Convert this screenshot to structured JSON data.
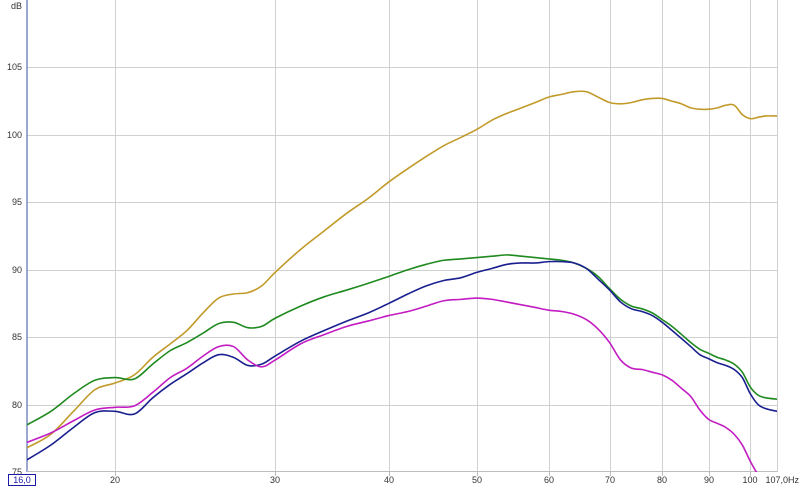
{
  "chart_data": {
    "type": "line",
    "title": "",
    "xlabel": "Hz",
    "ylabel": "dB",
    "x_scale": "log",
    "xlim": [
      16.0,
      107.0
    ],
    "ylim": [
      75,
      110
    ],
    "x_ticks": [
      20,
      30,
      40,
      50,
      60,
      70,
      80,
      90,
      100
    ],
    "x_tick_labels": [
      "20",
      "30",
      "40",
      "50",
      "60",
      "70",
      "80",
      "90",
      "100"
    ],
    "x_start_label": "16,0",
    "x_end_label": "107,0Hz",
    "y_ticks": [
      75,
      80,
      85,
      90,
      95,
      100,
      105
    ],
    "y_tick_labels": [
      "75",
      "80",
      "85",
      "90",
      "95",
      "100",
      "105"
    ],
    "y_unit_label": "dB",
    "grid": true,
    "series": [
      {
        "color": "#c29a2a",
        "x": [
          16,
          17,
          18,
          19,
          20,
          21,
          22,
          23,
          24,
          25,
          26,
          27,
          28,
          29,
          30,
          32,
          34,
          36,
          38,
          40,
          42,
          44,
          46,
          48,
          50,
          52,
          54,
          56,
          58,
          60,
          62,
          64,
          66,
          68,
          70,
          72,
          74,
          76,
          78,
          80,
          82,
          84,
          86,
          88,
          90,
          92,
          94,
          96,
          98,
          100,
          102,
          104,
          107
        ],
        "y": [
          76.8,
          77.8,
          79.5,
          81.1,
          81.6,
          82.2,
          83.5,
          84.5,
          85.5,
          86.8,
          87.9,
          88.2,
          88.3,
          88.8,
          89.8,
          91.5,
          92.9,
          94.2,
          95.3,
          96.5,
          97.5,
          98.4,
          99.2,
          99.8,
          100.4,
          101.1,
          101.6,
          102.0,
          102.4,
          102.8,
          103.0,
          103.2,
          103.2,
          102.8,
          102.4,
          102.3,
          102.4,
          102.6,
          102.7,
          102.7,
          102.5,
          102.3,
          102.0,
          101.9,
          101.9,
          102.0,
          102.2,
          102.2,
          101.5,
          101.2,
          101.3,
          101.4,
          101.4
        ]
      },
      {
        "color": "#1f8a1f",
        "x": [
          16,
          17,
          18,
          19,
          20,
          21,
          22,
          23,
          24,
          25,
          26,
          27,
          28,
          29,
          30,
          32,
          34,
          36,
          38,
          40,
          42,
          44,
          46,
          48,
          50,
          52,
          54,
          56,
          58,
          60,
          62,
          64,
          66,
          68,
          70,
          72,
          74,
          76,
          78,
          80,
          82,
          84,
          86,
          88,
          90,
          92,
          94,
          96,
          98,
          100,
          102,
          104,
          107
        ],
        "y": [
          78.5,
          79.5,
          80.8,
          81.8,
          82.0,
          81.9,
          83.0,
          84.0,
          84.6,
          85.3,
          86.0,
          86.1,
          85.7,
          85.8,
          86.4,
          87.3,
          88.0,
          88.5,
          89.0,
          89.5,
          90.0,
          90.4,
          90.7,
          90.8,
          90.9,
          91.0,
          91.1,
          91.0,
          90.9,
          90.8,
          90.7,
          90.5,
          90.1,
          89.5,
          88.6,
          87.8,
          87.3,
          87.1,
          86.8,
          86.3,
          85.8,
          85.2,
          84.6,
          84.1,
          83.8,
          83.5,
          83.3,
          83.0,
          82.4,
          81.3,
          80.7,
          80.5,
          80.4
        ]
      },
      {
        "color": "#1a1f8f",
        "x": [
          16,
          17,
          18,
          19,
          20,
          21,
          22,
          23,
          24,
          25,
          26,
          27,
          28,
          29,
          30,
          32,
          34,
          36,
          38,
          40,
          42,
          44,
          46,
          48,
          50,
          52,
          54,
          56,
          58,
          60,
          62,
          64,
          66,
          68,
          70,
          72,
          74,
          76,
          78,
          80,
          82,
          84,
          86,
          88,
          90,
          92,
          94,
          96,
          98,
          100,
          102,
          104,
          107
        ],
        "y": [
          75.9,
          77.0,
          78.3,
          79.4,
          79.5,
          79.3,
          80.5,
          81.5,
          82.3,
          83.1,
          83.7,
          83.5,
          82.9,
          83.0,
          83.6,
          84.7,
          85.5,
          86.2,
          86.8,
          87.5,
          88.2,
          88.8,
          89.2,
          89.4,
          89.8,
          90.1,
          90.4,
          90.5,
          90.5,
          90.6,
          90.6,
          90.5,
          90.1,
          89.3,
          88.5,
          87.6,
          87.1,
          86.9,
          86.6,
          86.1,
          85.5,
          84.9,
          84.3,
          83.7,
          83.4,
          83.1,
          82.9,
          82.6,
          82.0,
          80.8,
          80.0,
          79.7,
          79.5
        ]
      },
      {
        "color": "#c21cc2",
        "x": [
          16,
          17,
          18,
          19,
          20,
          21,
          22,
          23,
          24,
          25,
          26,
          27,
          28,
          29,
          30,
          32,
          34,
          36,
          38,
          40,
          42,
          44,
          46,
          48,
          50,
          52,
          54,
          56,
          58,
          60,
          62,
          64,
          66,
          68,
          70,
          72,
          74,
          76,
          78,
          80,
          82,
          84,
          86,
          88,
          90,
          92,
          94,
          96,
          98,
          100,
          102,
          104,
          107
        ],
        "y": [
          77.2,
          77.9,
          78.8,
          79.6,
          79.8,
          79.9,
          80.9,
          82.0,
          82.7,
          83.6,
          84.3,
          84.3,
          83.3,
          82.8,
          83.3,
          84.5,
          85.2,
          85.8,
          86.2,
          86.6,
          86.9,
          87.3,
          87.7,
          87.8,
          87.9,
          87.8,
          87.6,
          87.4,
          87.2,
          87.0,
          86.9,
          86.7,
          86.3,
          85.6,
          84.6,
          83.3,
          82.7,
          82.6,
          82.4,
          82.2,
          81.8,
          81.2,
          80.6,
          79.6,
          78.9,
          78.6,
          78.3,
          77.8,
          77.0,
          75.8,
          74.8,
          74.2,
          73.8
        ]
      }
    ]
  }
}
